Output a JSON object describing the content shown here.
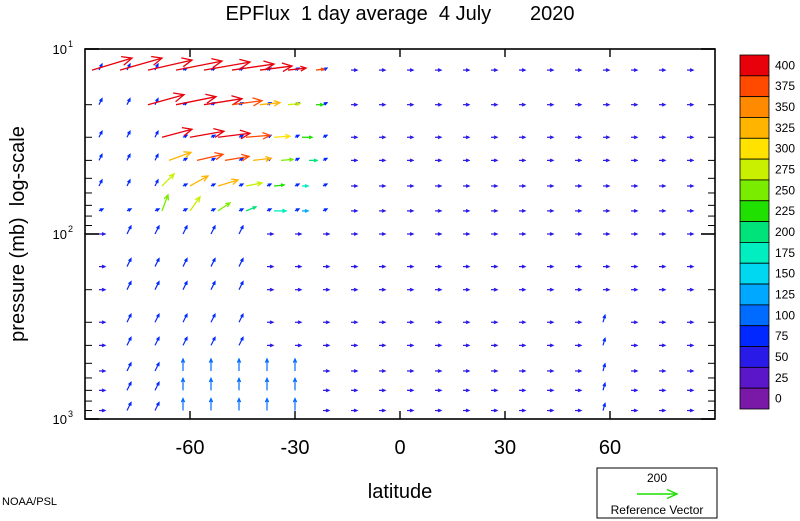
{
  "chart_data": {
    "type": "vector-field",
    "title": "EPFlux  1 day average  4 July       2020",
    "xlabel": "latitude",
    "ylabel": "pressure (mb)  log-scale",
    "credit": "NOAA/PSL",
    "xlim": [
      -90,
      90
    ],
    "ylim_mb": [
      1000,
      10
    ],
    "y_scale": "log",
    "x_ticks": [
      "-60",
      "-30",
      "0",
      "30",
      "60"
    ],
    "x_tick_values": [
      -60,
      -30,
      0,
      30,
      60
    ],
    "y_ticks": [
      {
        "value": 10,
        "base": "10",
        "exp": "1"
      },
      {
        "value": 100,
        "base": "10",
        "exp": "2"
      },
      {
        "value": 1000,
        "base": "10",
        "exp": "3"
      }
    ],
    "colorbar": {
      "levels": [
        "400",
        "375",
        "350",
        "325",
        "300",
        "275",
        "250",
        "225",
        "200",
        "175",
        "150",
        "125",
        "100",
        "75",
        "50",
        "25",
        "0"
      ],
      "colors": [
        "#e8000b",
        "#ff4a00",
        "#ff8a00",
        "#ffb400",
        "#ffe200",
        "#c8f000",
        "#7aec00",
        "#1fe000",
        "#00e37a",
        "#00eec0",
        "#00d8f2",
        "#00a8ff",
        "#006bff",
        "#0028ff",
        "#2a1ae8",
        "#5a16c8",
        "#7a18a8"
      ]
    },
    "reference_vector": {
      "magnitude": "200",
      "label": "Reference Vector",
      "color": "#1fe000"
    },
    "rows_mb": [
      13,
      20,
      30,
      40,
      55,
      75,
      100,
      150,
      200,
      300,
      400,
      550,
      700,
      900
    ],
    "flux_vectors": [
      {
        "lat": -88,
        "p": 13,
        "u": 40,
        "v": 12,
        "mag": 400
      },
      {
        "lat": -80,
        "p": 13,
        "u": 42,
        "v": 12,
        "mag": 400
      },
      {
        "lat": -72,
        "p": 13,
        "u": 44,
        "v": 10,
        "mag": 400
      },
      {
        "lat": -64,
        "p": 13,
        "u": 46,
        "v": 9,
        "mag": 400
      },
      {
        "lat": -56,
        "p": 13,
        "u": 46,
        "v": 8,
        "mag": 400
      },
      {
        "lat": -48,
        "p": 13,
        "u": 42,
        "v": 6,
        "mag": 400
      },
      {
        "lat": -40,
        "p": 13,
        "u": 32,
        "v": 4,
        "mag": 400
      },
      {
        "lat": -32,
        "p": 13,
        "u": 18,
        "v": 2,
        "mag": 400
      },
      {
        "lat": -24,
        "p": 13,
        "u": 8,
        "v": 1,
        "mag": 375
      },
      {
        "lat": -72,
        "p": 20,
        "u": 36,
        "v": 10,
        "mag": 400
      },
      {
        "lat": -64,
        "p": 20,
        "u": 40,
        "v": 8,
        "mag": 400
      },
      {
        "lat": -56,
        "p": 20,
        "u": 38,
        "v": 6,
        "mag": 400
      },
      {
        "lat": -48,
        "p": 20,
        "u": 30,
        "v": 4,
        "mag": 375
      },
      {
        "lat": -40,
        "p": 20,
        "u": 20,
        "v": 2,
        "mag": 325
      },
      {
        "lat": -32,
        "p": 20,
        "u": 12,
        "v": 1,
        "mag": 275
      },
      {
        "lat": -24,
        "p": 20,
        "u": 7,
        "v": 0,
        "mag": 225
      },
      {
        "lat": -68,
        "p": 30,
        "u": 30,
        "v": 8,
        "mag": 400
      },
      {
        "lat": -60,
        "p": 30,
        "u": 34,
        "v": 6,
        "mag": 400
      },
      {
        "lat": -52,
        "p": 30,
        "u": 32,
        "v": 4,
        "mag": 400
      },
      {
        "lat": -44,
        "p": 30,
        "u": 24,
        "v": 2,
        "mag": 375
      },
      {
        "lat": -36,
        "p": 30,
        "u": 16,
        "v": 1,
        "mag": 300
      },
      {
        "lat": -28,
        "p": 30,
        "u": 10,
        "v": 0,
        "mag": 225
      },
      {
        "lat": -66,
        "p": 40,
        "u": 22,
        "v": 8,
        "mag": 325
      },
      {
        "lat": -58,
        "p": 40,
        "u": 26,
        "v": 6,
        "mag": 375
      },
      {
        "lat": -50,
        "p": 40,
        "u": 24,
        "v": 4,
        "mag": 375
      },
      {
        "lat": -42,
        "p": 40,
        "u": 18,
        "v": 2,
        "mag": 325
      },
      {
        "lat": -34,
        "p": 40,
        "u": 12,
        "v": 1,
        "mag": 250
      },
      {
        "lat": -26,
        "p": 40,
        "u": 8,
        "v": 0,
        "mag": 200
      },
      {
        "lat": -68,
        "p": 55,
        "u": 12,
        "v": 12,
        "mag": 275
      },
      {
        "lat": -60,
        "p": 55,
        "u": 18,
        "v": 10,
        "mag": 325
      },
      {
        "lat": -52,
        "p": 55,
        "u": 20,
        "v": 6,
        "mag": 325
      },
      {
        "lat": -44,
        "p": 55,
        "u": 16,
        "v": 3,
        "mag": 275
      },
      {
        "lat": -36,
        "p": 55,
        "u": 10,
        "v": 1,
        "mag": 225
      },
      {
        "lat": -28,
        "p": 55,
        "u": 6,
        "v": 0,
        "mag": 175
      },
      {
        "lat": -68,
        "p": 75,
        "u": 6,
        "v": 16,
        "mag": 250
      },
      {
        "lat": -60,
        "p": 75,
        "u": 10,
        "v": 14,
        "mag": 275
      },
      {
        "lat": -52,
        "p": 75,
        "u": 12,
        "v": 8,
        "mag": 250
      },
      {
        "lat": -44,
        "p": 75,
        "u": 10,
        "v": 4,
        "mag": 200
      },
      {
        "lat": -36,
        "p": 75,
        "u": 12,
        "v": 0,
        "mag": 175
      },
      {
        "lat": -28,
        "p": 75,
        "u": 6,
        "v": 0,
        "mag": 125
      }
    ],
    "background_vectors": [
      {
        "region": "default",
        "u": 6,
        "v": 0,
        "mag": 50
      },
      {
        "region": "south-upper-edge",
        "lat_max": -70,
        "p_max": 60,
        "u": 3,
        "v": 6,
        "mag": 75
      },
      {
        "region": "south-mid",
        "lat_min": -85,
        "lat_max": -40,
        "p_min": 100,
        "u": 4,
        "v": 8,
        "mag": 75
      },
      {
        "region": "south-lower",
        "lat_min": -62,
        "lat_max": -30,
        "p_min": 550,
        "u": 0,
        "v": 12,
        "mag": 100
      },
      {
        "region": "north-mid",
        "lat_min": 52,
        "lat_max": 62,
        "p_min": 300,
        "u": 2,
        "v": 7,
        "mag": 75
      }
    ]
  }
}
